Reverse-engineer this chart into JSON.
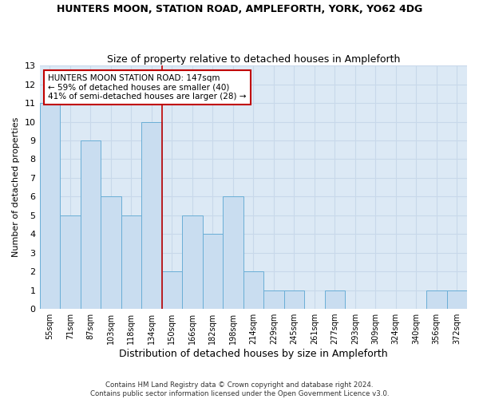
{
  "title": "HUNTERS MOON, STATION ROAD, AMPLEFORTH, YORK, YO62 4DG",
  "subtitle": "Size of property relative to detached houses in Ampleforth",
  "xlabel": "Distribution of detached houses by size in Ampleforth",
  "ylabel": "Number of detached properties",
  "categories": [
    "55sqm",
    "71sqm",
    "87sqm",
    "103sqm",
    "118sqm",
    "134sqm",
    "150sqm",
    "166sqm",
    "182sqm",
    "198sqm",
    "214sqm",
    "229sqm",
    "245sqm",
    "261sqm",
    "277sqm",
    "293sqm",
    "309sqm",
    "324sqm",
    "340sqm",
    "356sqm",
    "372sqm"
  ],
  "values": [
    11,
    5,
    9,
    6,
    5,
    10,
    2,
    5,
    4,
    6,
    2,
    1,
    1,
    0,
    1,
    0,
    0,
    0,
    0,
    1,
    1
  ],
  "bar_color": "#c9ddf0",
  "bar_edge_color": "#6aaed6",
  "marker_line_color": "#c00000",
  "annotation_box_color": "#c00000",
  "annotation_text_line1": "HUNTERS MOON STATION ROAD: 147sqm",
  "annotation_text_line2": "← 59% of detached houses are smaller (40)",
  "annotation_text_line3": "41% of semi-detached houses are larger (28) →",
  "ylim": [
    0,
    13
  ],
  "yticks": [
    0,
    1,
    2,
    3,
    4,
    5,
    6,
    7,
    8,
    9,
    10,
    11,
    12,
    13
  ],
  "grid_color": "#c8d8ea",
  "background_color": "#dce9f5",
  "title_fontsize": 9,
  "subtitle_fontsize": 9,
  "footer_line1": "Contains HM Land Registry data © Crown copyright and database right 2024.",
  "footer_line2": "Contains public sector information licensed under the Open Government Licence v3.0."
}
